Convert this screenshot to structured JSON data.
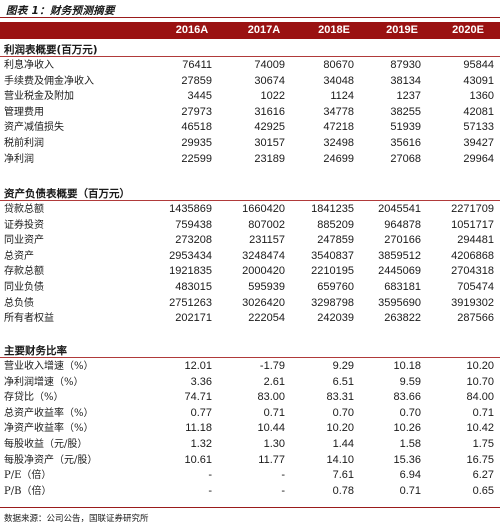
{
  "title": "图表 1：财务预测摘要",
  "header": [
    "2016A",
    "2017A",
    "2018E",
    "2019E",
    "2020E"
  ],
  "sections": [
    {
      "title": "利润表概要(百万元)",
      "rows": [
        {
          "label": "利息净收入",
          "values": [
            "76411",
            "74009",
            "80670",
            "87930",
            "95844"
          ]
        },
        {
          "label": "手续费及佣金净收入",
          "values": [
            "27859",
            "30674",
            "34048",
            "38134",
            "43091"
          ]
        },
        {
          "label": "营业税金及附加",
          "values": [
            "3445",
            "1022",
            "1124",
            "1237",
            "1360"
          ]
        },
        {
          "label": "管理费用",
          "values": [
            "27973",
            "31616",
            "34778",
            "38255",
            "42081"
          ]
        },
        {
          "label": "资产减值损失",
          "values": [
            "46518",
            "42925",
            "47218",
            "51939",
            "57133"
          ]
        },
        {
          "label": "税前利润",
          "values": [
            "29935",
            "30157",
            "32498",
            "35616",
            "39427"
          ]
        },
        {
          "label": "净利润",
          "values": [
            "22599",
            "23189",
            "24699",
            "27068",
            "29964"
          ]
        }
      ]
    },
    {
      "title": "资产负债表概要（百万元）",
      "rows": [
        {
          "label": "贷款总额",
          "values": [
            "1435869",
            "1660420",
            "1841235",
            "2045541",
            "2271709"
          ]
        },
        {
          "label": "证券投资",
          "values": [
            "759438",
            "807002",
            "885209",
            "964878",
            "1051717"
          ]
        },
        {
          "label": "同业资产",
          "values": [
            "273208",
            "231157",
            "247859",
            "270166",
            "294481"
          ]
        },
        {
          "label": "总资产",
          "values": [
            "2953434",
            "3248474",
            "3540837",
            "3859512",
            "4206868"
          ]
        },
        {
          "label": "存款总额",
          "values": [
            "1921835",
            "2000420",
            "2210195",
            "2445069",
            "2704318"
          ]
        },
        {
          "label": "同业负债",
          "values": [
            "483015",
            "595939",
            "659760",
            "683181",
            "705474"
          ]
        },
        {
          "label": "总负债",
          "values": [
            "2751263",
            "3026420",
            "3298798",
            "3595690",
            "3919302"
          ]
        },
        {
          "label": "所有者权益",
          "values": [
            "202171",
            "222054",
            "242039",
            "263822",
            "287566"
          ]
        }
      ]
    },
    {
      "title": "主要财务比率",
      "rows": [
        {
          "label": "营业收入增速（%）",
          "values": [
            "12.01",
            "-1.79",
            "9.29",
            "10.18",
            "10.20"
          ]
        },
        {
          "label": "净利润增速（%）",
          "values": [
            "3.36",
            "2.61",
            "6.51",
            "9.59",
            "10.70"
          ]
        },
        {
          "label": "存贷比（%）",
          "values": [
            "74.71",
            "83.00",
            "83.31",
            "83.66",
            "84.00"
          ]
        },
        {
          "label": "总资产收益率（%）",
          "values": [
            "0.77",
            "0.71",
            "0.70",
            "0.70",
            "0.71"
          ]
        },
        {
          "label": "净资产收益率（%）",
          "values": [
            "11.18",
            "10.44",
            "10.20",
            "10.26",
            "10.42"
          ]
        },
        {
          "label": "每股收益（元/股）",
          "values": [
            "1.32",
            "1.30",
            "1.44",
            "1.58",
            "1.75"
          ]
        },
        {
          "label": "每股净资产（元/股）",
          "values": [
            "10.61",
            "11.77",
            "14.10",
            "15.36",
            "16.75"
          ]
        },
        {
          "label": "P/E（倍）",
          "values": [
            "-",
            "-",
            "7.61",
            "6.94",
            "6.27"
          ]
        },
        {
          "label": "P/B（倍）",
          "values": [
            "-",
            "-",
            "0.78",
            "0.71",
            "0.65"
          ]
        }
      ]
    }
  ],
  "source": "数据来源：公司公告，国联证券研究所"
}
